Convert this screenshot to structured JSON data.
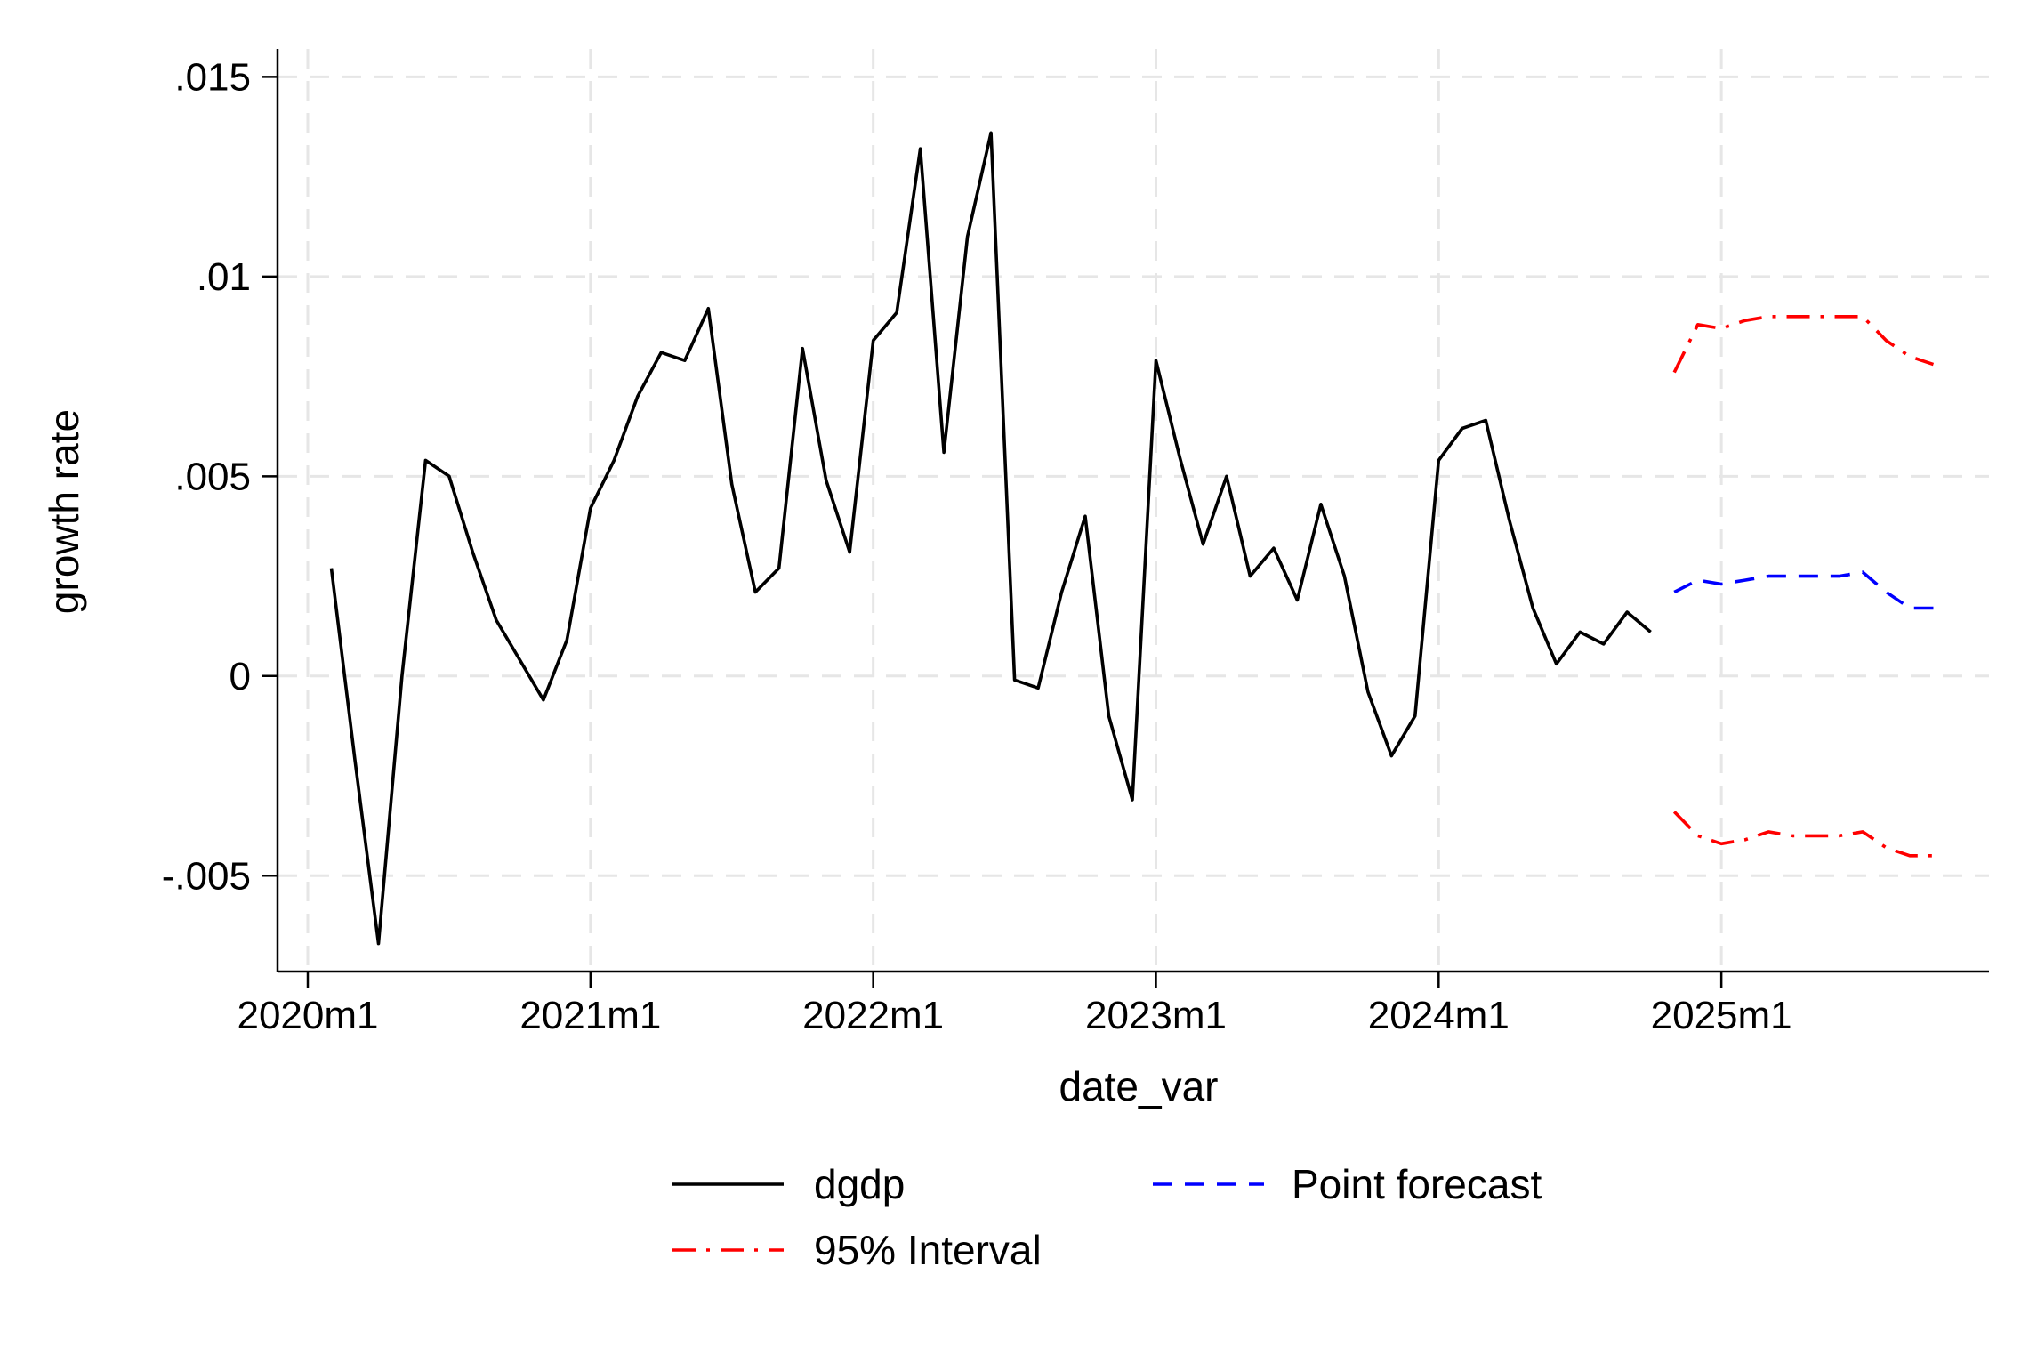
{
  "chart_data": {
    "type": "line",
    "title": "",
    "xlabel": "date_var",
    "ylabel": "growth rate",
    "x_ticks": [
      "2020m1",
      "2021m1",
      "2022m1",
      "2023m1",
      "2024m1",
      "2025m1"
    ],
    "y_ticks": [
      {
        "value": -0.005,
        "label": "-.005"
      },
      {
        "value": 0,
        "label": "0"
      },
      {
        "value": 0.005,
        "label": ".005"
      },
      {
        "value": 0.01,
        "label": ".01"
      },
      {
        "value": 0.015,
        "label": ".015"
      }
    ],
    "xlim": [
      "2020m1",
      "2025m11"
    ],
    "ylim": [
      -0.0074,
      0.0157
    ],
    "grid": true,
    "legend_position": "bottom",
    "series": [
      {
        "name": "dgdp",
        "color": "#000000",
        "dash": "solid",
        "x": [
          "2020m2",
          "2020m3",
          "2020m4",
          "2020m5",
          "2020m6",
          "2020m7",
          "2020m8",
          "2020m9",
          "2020m10",
          "2020m11",
          "2020m12",
          "2021m1",
          "2021m2",
          "2021m3",
          "2021m4",
          "2021m5",
          "2021m6",
          "2021m7",
          "2021m8",
          "2021m9",
          "2021m10",
          "2021m11",
          "2021m12",
          "2022m1",
          "2022m2",
          "2022m3",
          "2022m4",
          "2022m5",
          "2022m6",
          "2022m7",
          "2022m8",
          "2022m9",
          "2022m10",
          "2022m11",
          "2022m12",
          "2023m1",
          "2023m2",
          "2023m3",
          "2023m4",
          "2023m5",
          "2023m6",
          "2023m7",
          "2023m8",
          "2023m9",
          "2023m10",
          "2023m11",
          "2023m12",
          "2024m1",
          "2024m2",
          "2024m3",
          "2024m4",
          "2024m5",
          "2024m6",
          "2024m7",
          "2024m8",
          "2024m9",
          "2024m10"
        ],
        "values": [
          0.0027,
          -0.0021,
          -0.0067,
          0.0,
          0.0054,
          0.005,
          0.0031,
          0.0014,
          0.0004,
          -0.0006,
          0.0009,
          0.0042,
          0.0054,
          0.007,
          0.0081,
          0.0079,
          0.0092,
          0.0048,
          0.0021,
          0.0027,
          0.0082,
          0.0049,
          0.0031,
          0.0084,
          0.0091,
          0.0132,
          0.0056,
          0.011,
          0.0136,
          -0.0001,
          -0.0003,
          0.0021,
          0.004,
          -0.001,
          -0.0031,
          0.0079,
          0.0055,
          0.0033,
          0.005,
          0.0025,
          0.0032,
          0.0019,
          0.0043,
          0.0025,
          -0.0004,
          -0.002,
          -0.001,
          0.0054,
          0.0062,
          0.0064,
          0.0039,
          0.0017,
          0.0003,
          0.0011,
          0.0008,
          0.0016,
          0.0011
        ]
      },
      {
        "name": "Point forecast",
        "color": "#0000ff",
        "dash": "dash",
        "x": [
          "2024m11",
          "2024m12",
          "2025m1",
          "2025m2",
          "2025m3",
          "2025m4",
          "2025m5",
          "2025m6",
          "2025m7",
          "2025m8",
          "2025m9",
          "2025m10"
        ],
        "values": [
          0.0021,
          0.0024,
          0.0023,
          0.0024,
          0.0025,
          0.0025,
          0.0025,
          0.0025,
          0.0026,
          0.0021,
          0.0017,
          0.0017
        ]
      },
      {
        "name": "95% Interval",
        "color": "#ff0000",
        "dash": "dashdot",
        "x": [
          "2024m11",
          "2024m12",
          "2025m1",
          "2025m2",
          "2025m3",
          "2025m4",
          "2025m5",
          "2025m6",
          "2025m7",
          "2025m8",
          "2025m9",
          "2025m10"
        ],
        "values": [
          0.0076,
          0.0088,
          0.0087,
          0.0089,
          0.009,
          0.009,
          0.009,
          0.009,
          0.009,
          0.0084,
          0.008,
          0.0078
        ]
      },
      {
        "name": "",
        "color": "#ff0000",
        "dash": "dashdot",
        "x": [
          "2024m11",
          "2024m12",
          "2025m1",
          "2025m2",
          "2025m3",
          "2025m4",
          "2025m5",
          "2025m6",
          "2025m7",
          "2025m8",
          "2025m9",
          "2025m10"
        ],
        "values": [
          -0.0034,
          -0.004,
          -0.0042,
          -0.0041,
          -0.0039,
          -0.004,
          -0.004,
          -0.004,
          -0.0039,
          -0.0043,
          -0.0045,
          -0.0045
        ]
      }
    ],
    "legend": [
      {
        "label": "dgdp",
        "color": "#000000",
        "dash": "solid"
      },
      {
        "label": "Point forecast",
        "color": "#0000ff",
        "dash": "dash"
      },
      {
        "label": "95% Interval",
        "color": "#ff0000",
        "dash": "dashdot"
      }
    ]
  }
}
